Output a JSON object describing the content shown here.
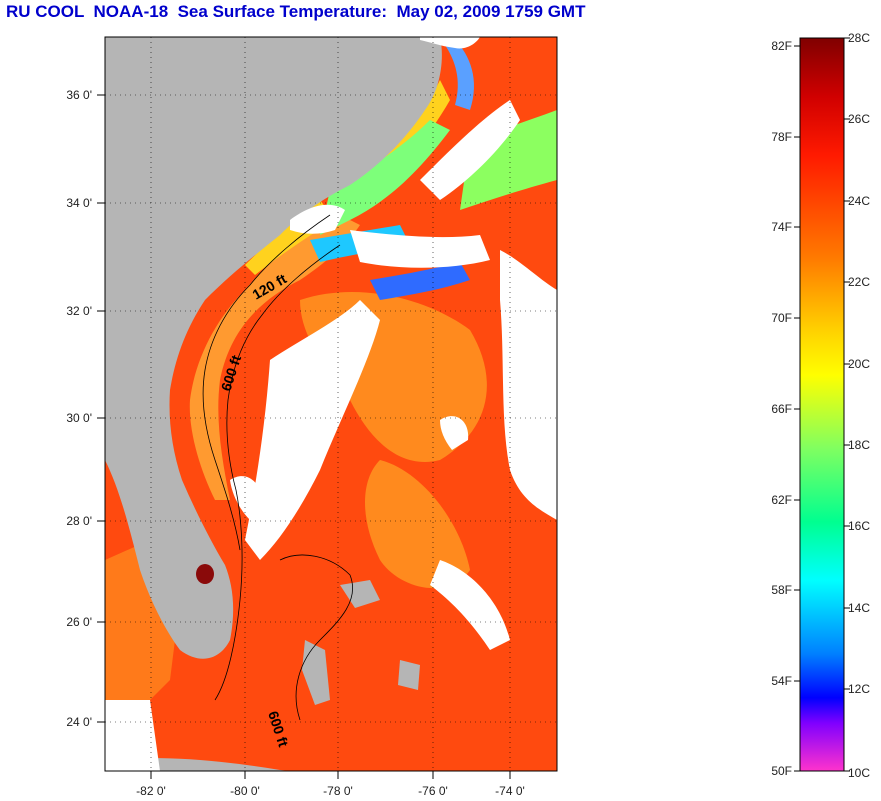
{
  "title": "RU COOL  NOAA-18  Sea Surface Temperature:  May 02, 2009 1759 GMT",
  "map": {
    "lon_range": [
      -83,
      -73
    ],
    "lat_range": [
      23,
      37
    ],
    "lat_ticks": [
      "36 0'",
      "34 0'",
      "32 0'",
      "30 0'",
      "28 0'",
      "26 0'",
      "24 0'"
    ],
    "lon_ticks": [
      "-82 0'",
      "-80 0'",
      "-78 0'",
      "-76 0'",
      "-74 0'"
    ],
    "contour_labels": [
      "120 ft",
      "600 ft",
      "600 ft"
    ],
    "colors": {
      "land": "#b5b5b5",
      "cloud": "#ffffff",
      "warm_water": "#ff3a0a",
      "mid_water": "#ff8c1a",
      "cool_water": "#ffd21a",
      "grid": "#000000"
    }
  },
  "colorbar": {
    "fahrenheit_labels": [
      "82F",
      "78F",
      "74F",
      "70F",
      "66F",
      "62F",
      "58F",
      "54F",
      "50F"
    ],
    "celsius_labels": [
      "28C",
      "26C",
      "24C",
      "22C",
      "20C",
      "18C",
      "16C",
      "14C",
      "12C",
      "10C"
    ],
    "celsius_range": [
      10,
      28
    ],
    "colors": [
      "#800000",
      "#ff0000",
      "#ff8000",
      "#ffff00",
      "#80ff80",
      "#00ffff",
      "#0080ff",
      "#0000ff",
      "#8000ff",
      "#ff33cc"
    ]
  }
}
